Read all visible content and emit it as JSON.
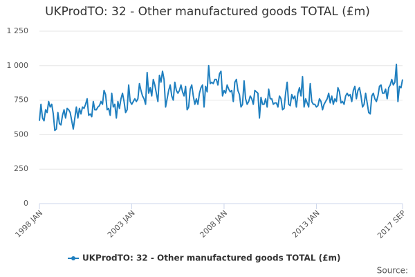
{
  "chart_data": {
    "type": "line",
    "title": "UKProdTO: 32 - Other manufactured goods TOTAL (£m)",
    "source": "Source:",
    "categories": [
      "1998 JAN",
      null,
      null,
      null,
      null,
      null,
      null,
      null,
      null,
      null,
      null,
      null,
      null,
      null,
      null,
      null,
      null,
      null,
      null,
      null,
      null,
      null,
      null,
      null,
      null,
      null,
      null,
      null,
      null,
      null,
      null,
      null,
      null,
      null,
      null,
      null,
      null,
      null,
      null,
      null,
      null,
      null,
      null,
      null,
      null,
      null,
      null,
      null,
      null,
      null,
      null,
      null,
      null,
      null,
      null,
      null,
      null,
      null,
      null,
      null,
      "2003 JAN",
      null,
      null,
      null,
      null,
      null,
      null,
      null,
      null,
      null,
      null,
      null,
      null,
      null,
      null,
      null,
      null,
      null,
      null,
      null,
      null,
      null,
      null,
      null,
      null,
      null,
      null,
      null,
      null,
      null,
      null,
      null,
      null,
      null,
      null,
      null,
      null,
      null,
      null,
      null,
      null,
      null,
      null,
      null,
      null,
      null,
      null,
      null,
      null,
      null,
      null,
      null,
      null,
      null,
      null,
      null,
      null,
      null,
      null,
      null,
      "2008 JAN",
      null,
      null,
      null,
      null,
      null,
      null,
      null,
      null,
      null,
      null,
      null,
      null,
      null,
      null,
      null,
      null,
      null,
      null,
      null,
      null,
      null,
      null,
      null,
      null,
      null,
      null,
      null,
      null,
      null,
      null,
      null,
      null,
      null,
      null,
      null,
      null,
      null,
      null,
      null,
      null,
      null,
      null,
      null,
      null,
      null,
      null,
      null,
      null,
      null,
      null,
      null,
      null,
      null,
      null,
      null,
      null,
      null,
      null,
      null,
      "2013 JAN",
      null,
      null,
      null,
      null,
      null,
      null,
      null,
      null,
      null,
      null,
      null,
      null,
      null,
      null,
      null,
      null,
      null,
      null,
      null,
      null,
      null,
      null,
      null,
      null,
      null,
      null,
      null,
      null,
      null,
      null,
      null,
      null,
      null,
      null,
      null,
      null,
      null,
      null,
      null,
      null,
      null,
      null,
      null,
      null,
      null,
      null,
      null,
      null,
      null,
      null,
      null,
      null,
      null,
      null,
      null,
      "2017 SEP"
    ],
    "series": [
      {
        "name": "UKProdTO: 32 - Other manufactured goods TOTAL (£m)",
        "color": "#1f7fbf",
        "values": [
          600,
          720,
          620,
          600,
          680,
          660,
          740,
          700,
          720,
          650,
          530,
          540,
          660,
          580,
          570,
          640,
          680,
          620,
          690,
          680,
          660,
          600,
          540,
          620,
          700,
          620,
          690,
          650,
          700,
          690,
          720,
          760,
          640,
          650,
          630,
          740,
          680,
          680,
          700,
          710,
          740,
          720,
          820,
          790,
          680,
          690,
          640,
          800,
          700,
          720,
          620,
          740,
          690,
          760,
          800,
          740,
          660,
          680,
          860,
          740,
          720,
          740,
          760,
          740,
          760,
          870,
          820,
          780,
          760,
          720,
          950,
          800,
          840,
          780,
          900,
          860,
          800,
          740,
          930,
          880,
          960,
          900,
          700,
          760,
          820,
          860,
          780,
          750,
          880,
          820,
          800,
          820,
          860,
          810,
          780,
          850,
          680,
          700,
          830,
          860,
          780,
          720,
          760,
          720,
          800,
          840,
          860,
          700,
          850,
          810,
          1000,
          870,
          880,
          870,
          900,
          900,
          860,
          940,
          960,
          780,
          820,
          800,
          860,
          830,
          810,
          820,
          740,
          880,
          900,
          820,
          790,
          700,
          720,
          890,
          760,
          720,
          740,
          780,
          760,
          720,
          820,
          810,
          800,
          620,
          770,
          720,
          720,
          760,
          700,
          830,
          760,
          760,
          720,
          730,
          730,
          700,
          780,
          760,
          680,
          690,
          800,
          880,
          720,
          710,
          790,
          760,
          780,
          700,
          800,
          840,
          780,
          920,
          700,
          760,
          730,
          700,
          870,
          740,
          720,
          720,
          700,
          710,
          760,
          740,
          680,
          720,
          740,
          760,
          800,
          730,
          780,
          720,
          760,
          740,
          840,
          810,
          730,
          740,
          720,
          780,
          800,
          780,
          790,
          740,
          820,
          850,
          760,
          820,
          840,
          780,
          700,
          720,
          800,
          730,
          660,
          650,
          780,
          800,
          760,
          740,
          780,
          850,
          860,
          800,
          800,
          830,
          760,
          840,
          860,
          900,
          860,
          880,
          1010,
          740,
          850,
          840,
          900
        ]
      }
    ],
    "ylim": [
      0,
      1250
    ],
    "yticks": [
      0,
      250,
      500,
      750,
      {
        "value": 1000,
        "label": "1 000"
      },
      {
        "value": 1250,
        "label": "1 250"
      }
    ],
    "grid": true
  }
}
